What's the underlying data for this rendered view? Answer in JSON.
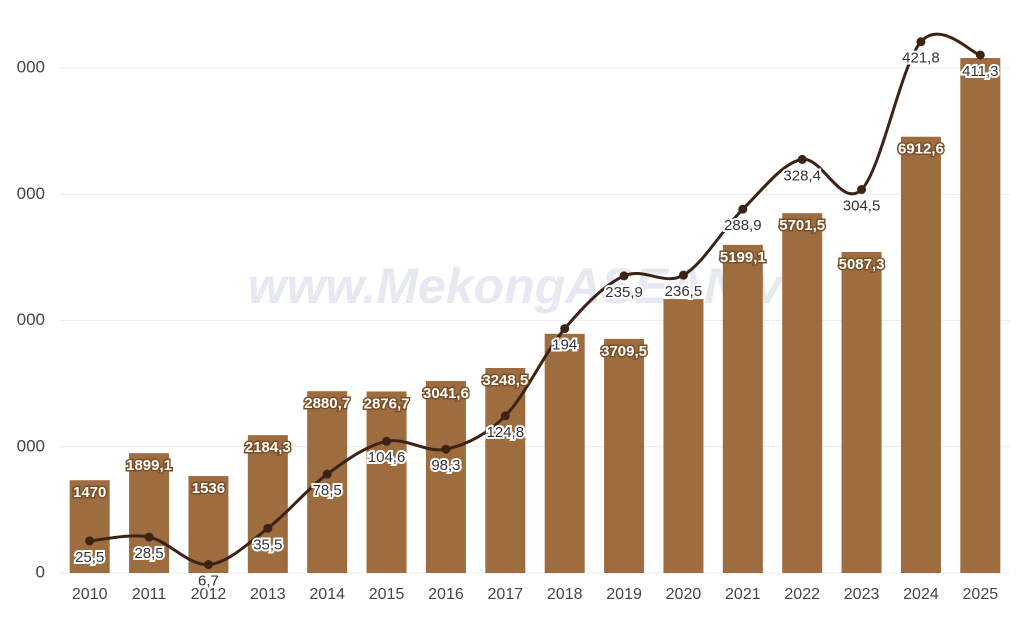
{
  "chart_data": {
    "type": "bar_line",
    "watermark": "www.MekongASEAN.vn",
    "categories": [
      "2010",
      "2011",
      "2012",
      "2013",
      "2014",
      "2015",
      "2016",
      "2017",
      "2018",
      "2019",
      "2020",
      "2021",
      "2022",
      "2023",
      "2024",
      "2025"
    ],
    "ylim": [
      0,
      9000
    ],
    "yticks": [
      0,
      {
        "value": 2000,
        "label": "000"
      },
      {
        "value": 4000,
        "label": "000"
      },
      {
        "value": 6000,
        "label": "000"
      },
      {
        "value": 8000,
        "label": "000"
      }
    ],
    "y2lim": [
      0,
      451
    ],
    "grid": true,
    "series": [
      {
        "type": "bar",
        "color": "#9e6d3f",
        "values": [
          1470,
          1899.1,
          1536,
          2184.3,
          2880.7,
          2876.7,
          3041.6,
          3248.5,
          3790,
          3709.5,
          4340,
          5199.1,
          5701.5,
          5087.3,
          6912.6,
          8160
        ],
        "value_labels": [
          "1470",
          "1899,1",
          "1536",
          "2184,3",
          "2880,7",
          "2876,7",
          "3041,6",
          "3248,5",
          null,
          "3709,5",
          null,
          "5199,1",
          "5701,5",
          "5087,3",
          "6912,6",
          null
        ]
      },
      {
        "type": "line",
        "axis": "y2",
        "color": "#3d2314",
        "values": [
          25.5,
          28.5,
          6.7,
          35.5,
          78.5,
          104.6,
          98.3,
          124.8,
          194,
          235.9,
          236.5,
          288.9,
          328.4,
          304.5,
          421.8,
          411.3
        ],
        "value_labels": [
          "25,5",
          "28,5",
          "6,7",
          "35,5",
          "78,5",
          "104,6",
          "98,3",
          "124,8",
          "194",
          "235,9",
          "236,5",
          "288,9",
          "328,4",
          "304,5",
          "421,8",
          "411,3"
        ]
      }
    ]
  }
}
